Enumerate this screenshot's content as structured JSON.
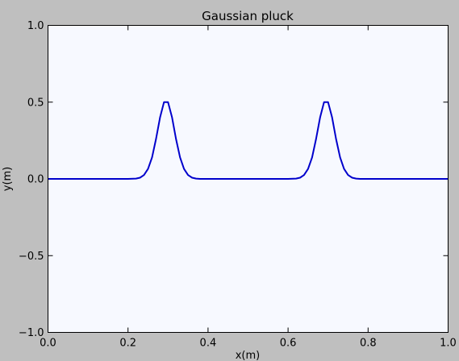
{
  "chart_data": {
    "type": "line",
    "title": "Gaussian pluck",
    "xlabel": "x(m)",
    "ylabel": "y(m)",
    "xlim": [
      0.0,
      1.0
    ],
    "ylim": [
      -1.0,
      1.0
    ],
    "xticks": [
      0.0,
      0.2,
      0.4,
      0.6,
      0.8,
      1.0
    ],
    "xtick_labels": [
      "0.0",
      "0.2",
      "0.4",
      "0.6",
      "0.8",
      "1.0"
    ],
    "yticks": [
      -1.0,
      -0.5,
      0.0,
      0.5,
      1.0
    ],
    "ytick_labels": [
      "−1.0",
      "−0.5",
      "0.0",
      "0.5",
      "1.0"
    ],
    "grid": false,
    "legend": false,
    "line_color": "#0000cc",
    "plot_background": "#f7f9ff",
    "figure_background": "#bfbfbf",
    "series": [
      {
        "x": [
          0.0,
          0.05,
          0.1,
          0.15,
          0.2,
          0.22,
          0.23,
          0.24,
          0.25,
          0.26,
          0.27,
          0.28,
          0.29,
          0.3,
          0.31,
          0.32,
          0.33,
          0.34,
          0.35,
          0.36,
          0.37,
          0.38,
          0.4,
          0.45,
          0.5,
          0.55,
          0.6,
          0.62,
          0.63,
          0.64,
          0.65,
          0.66,
          0.67,
          0.68,
          0.69,
          0.7,
          0.71,
          0.72,
          0.73,
          0.74,
          0.75,
          0.76,
          0.77,
          0.78,
          0.8,
          0.85,
          0.9,
          0.95,
          1.0
        ],
        "y": [
          0.0,
          0.0,
          0.0,
          0.0,
          0.0,
          0.002,
          0.008,
          0.025,
          0.065,
          0.14,
          0.26,
          0.4,
          0.5,
          0.5,
          0.4,
          0.26,
          0.14,
          0.065,
          0.025,
          0.008,
          0.002,
          0.0,
          0.0,
          0.0,
          0.0,
          0.0,
          0.0,
          0.002,
          0.008,
          0.025,
          0.065,
          0.14,
          0.26,
          0.4,
          0.5,
          0.5,
          0.4,
          0.26,
          0.14,
          0.065,
          0.025,
          0.008,
          0.002,
          0.0,
          0.0,
          0.0,
          0.0,
          0.0,
          0.0
        ]
      }
    ]
  }
}
